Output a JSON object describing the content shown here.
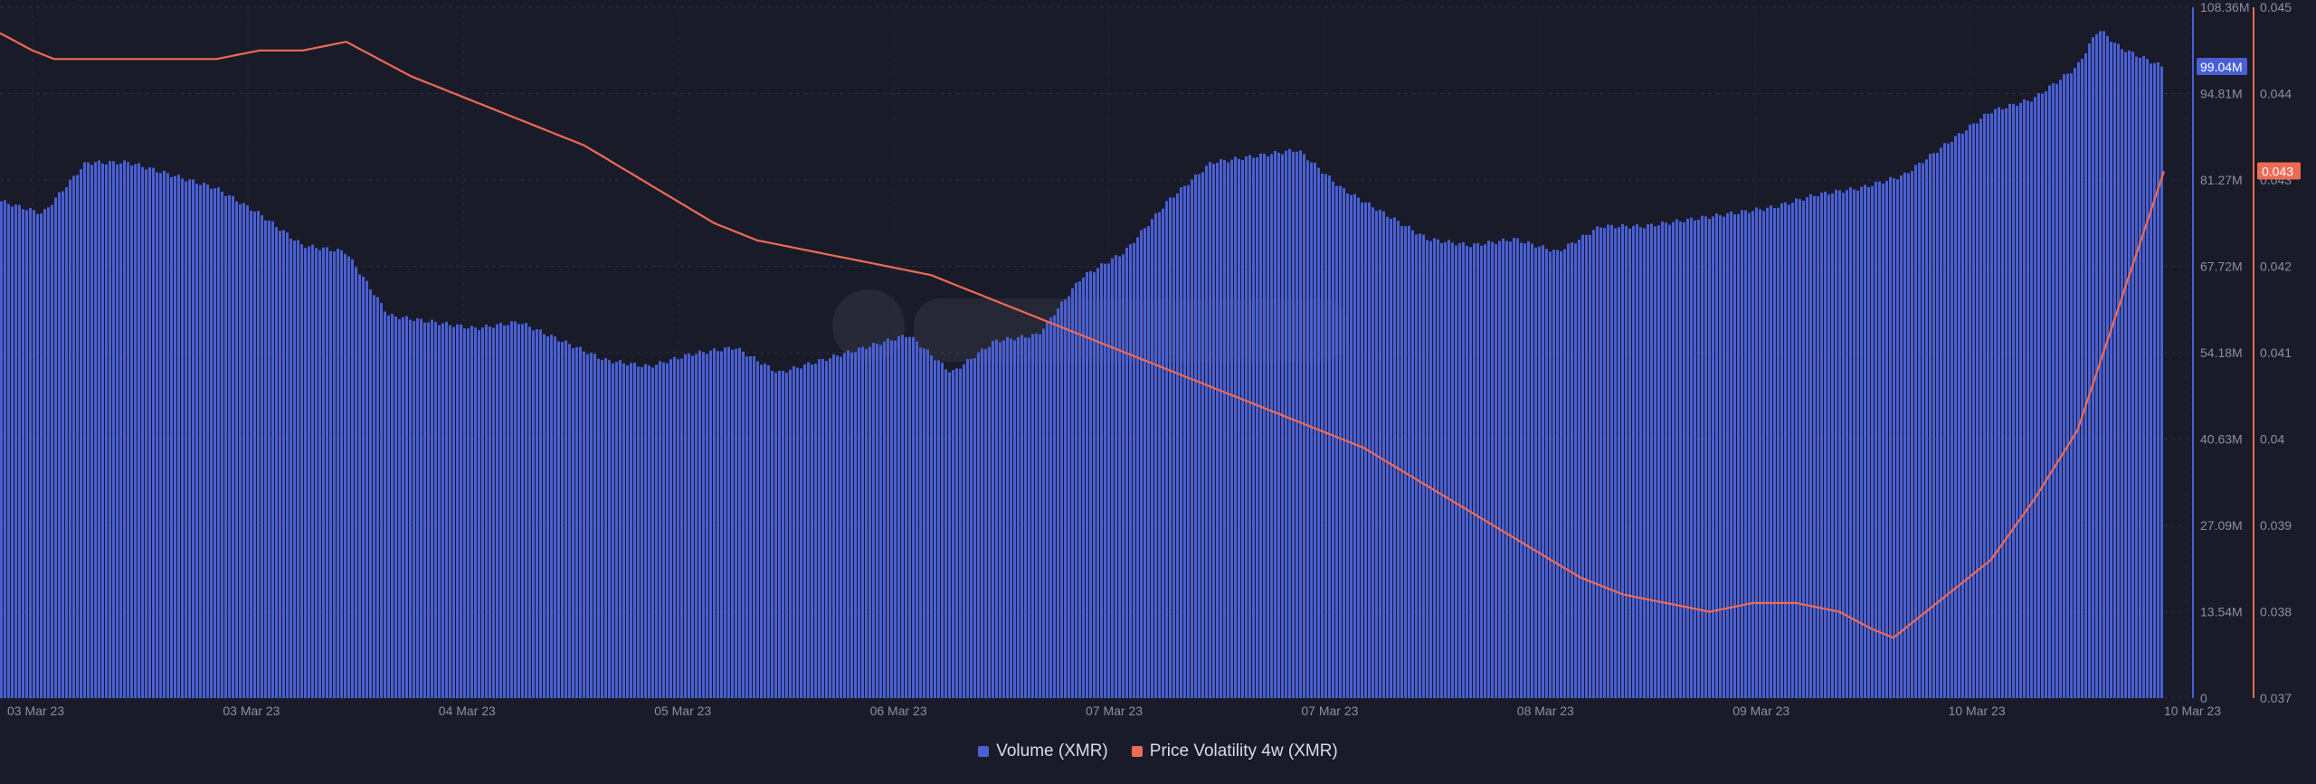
{
  "colors": {
    "background": "#191b29",
    "volume": "#4a5fd4",
    "volatility": "#ef6a55",
    "grid": "#2b2e41",
    "axis_text": "#8a8fa3"
  },
  "chart_data": {
    "type": "bar",
    "title": "",
    "x_tick_labels": [
      "03 Mar 23",
      "03 Mar 23",
      "04 Mar 23",
      "05 Mar 23",
      "06 Mar 23",
      "07 Mar 23",
      "07 Mar 23",
      "08 Mar 23",
      "09 Mar 23",
      "10 Mar 23",
      "10 Mar 23"
    ],
    "y_left": {
      "ticks": [
        0,
        13540000,
        27090000,
        40630000,
        54180000,
        67720000,
        81270000,
        94810000,
        108360000
      ],
      "tick_labels": [
        "0",
        "13.54M",
        "27.09M",
        "40.63M",
        "54.18M",
        "67.72M",
        "81.27M",
        "94.81M",
        "108.36M"
      ],
      "range": [
        0,
        108360000
      ],
      "current_label": "99.04M"
    },
    "y_right": {
      "ticks": [
        0.037,
        0.038,
        0.039,
        0.04,
        0.041,
        0.042,
        0.043,
        0.044,
        0.045
      ],
      "tick_labels": [
        "0.037",
        "0.038",
        "0.039",
        "0.04",
        "0.041",
        "0.042",
        "0.043",
        "0.044",
        "0.045"
      ],
      "range": [
        0.037,
        0.045
      ],
      "current_label": "0.043"
    },
    "grid": true,
    "legend_position": "bottom-center",
    "series": [
      {
        "name": "Volume (XMR)",
        "type": "bar",
        "axis": "left",
        "x": [
          0,
          0.02,
          0.04,
          0.05,
          0.06,
          0.07,
          0.08,
          0.1,
          0.12,
          0.14,
          0.16,
          0.18,
          0.2,
          0.22,
          0.24,
          0.26,
          0.28,
          0.3,
          0.32,
          0.34,
          0.36,
          0.38,
          0.4,
          0.42,
          0.44,
          0.46,
          0.48,
          0.5,
          0.52,
          0.54,
          0.56,
          0.58,
          0.6,
          0.62,
          0.64,
          0.66,
          0.68,
          0.7,
          0.72,
          0.74,
          0.76,
          0.78,
          0.8,
          0.82,
          0.84,
          0.86,
          0.88,
          0.9,
          0.92,
          0.94,
          0.96,
          0.97,
          0.98,
          1.0
        ],
        "values": [
          78,
          76,
          84,
          84,
          84,
          83,
          82,
          80,
          76,
          71,
          70,
          60,
          59,
          58,
          59,
          56,
          53,
          52,
          54,
          55,
          51,
          53,
          55,
          57,
          51,
          56,
          57,
          66,
          70,
          78,
          84,
          85,
          86,
          80,
          76,
          72,
          71,
          72,
          70,
          74,
          74,
          75,
          76,
          77,
          79,
          80,
          82,
          87,
          92,
          94,
          99,
          105,
          102,
          99
        ]
      },
      {
        "name": "Price Volatility 4w (XMR)",
        "type": "line",
        "axis": "right",
        "x": [
          0,
          0.015,
          0.025,
          0.035,
          0.05,
          0.065,
          0.08,
          0.1,
          0.12,
          0.14,
          0.16,
          0.175,
          0.19,
          0.21,
          0.23,
          0.25,
          0.27,
          0.29,
          0.31,
          0.33,
          0.35,
          0.37,
          0.39,
          0.41,
          0.43,
          0.45,
          0.47,
          0.49,
          0.51,
          0.53,
          0.55,
          0.57,
          0.59,
          0.61,
          0.63,
          0.65,
          0.67,
          0.69,
          0.71,
          0.73,
          0.75,
          0.77,
          0.79,
          0.81,
          0.83,
          0.85,
          0.865,
          0.875,
          0.885,
          0.9,
          0.92,
          0.94,
          0.96,
          0.98,
          1.0
        ],
        "values": [
          0.0447,
          0.0445,
          0.0444,
          0.0444,
          0.0444,
          0.0444,
          0.0444,
          0.0444,
          0.0445,
          0.0445,
          0.0446,
          0.0444,
          0.0442,
          0.044,
          0.0438,
          0.0436,
          0.0434,
          0.0431,
          0.0428,
          0.0425,
          0.0423,
          0.0422,
          0.0421,
          0.042,
          0.0419,
          0.0417,
          0.0415,
          0.0413,
          0.0411,
          0.0409,
          0.0407,
          0.0405,
          0.0403,
          0.0401,
          0.0399,
          0.0396,
          0.0393,
          0.039,
          0.0387,
          0.0384,
          0.0382,
          0.0381,
          0.038,
          0.0381,
          0.0381,
          0.038,
          0.0378,
          0.0377,
          0.0379,
          0.0382,
          0.0386,
          0.0393,
          0.0401,
          0.0416,
          0.0431
        ]
      }
    ]
  }
}
